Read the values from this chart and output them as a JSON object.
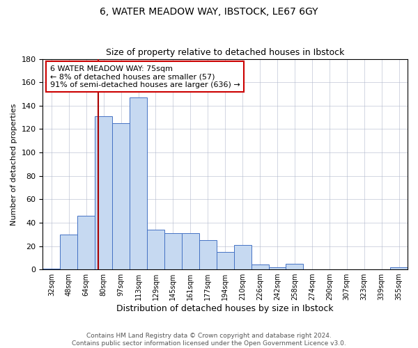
{
  "title": "6, WATER MEADOW WAY, IBSTOCK, LE67 6GY",
  "subtitle": "Size of property relative to detached houses in Ibstock",
  "xlabel": "Distribution of detached houses by size in Ibstock",
  "ylabel": "Number of detached properties",
  "bar_labels": [
    "32sqm",
    "48sqm",
    "64sqm",
    "80sqm",
    "97sqm",
    "113sqm",
    "129sqm",
    "145sqm",
    "161sqm",
    "177sqm",
    "194sqm",
    "210sqm",
    "226sqm",
    "242sqm",
    "258sqm",
    "274sqm",
    "290sqm",
    "307sqm",
    "323sqm",
    "339sqm",
    "355sqm"
  ],
  "bar_values": [
    1,
    30,
    46,
    131,
    125,
    147,
    34,
    31,
    31,
    25,
    15,
    21,
    4,
    2,
    5,
    0,
    0,
    0,
    0,
    0,
    2
  ],
  "bar_color": "#c6d9f1",
  "bar_edge_color": "#4472c4",
  "annotation_text_line1": "6 WATER MEADOW WAY: 75sqm",
  "annotation_text_line2": "← 8% of detached houses are smaller (57)",
  "annotation_text_line3": "91% of semi-detached houses are larger (636) →",
  "annotation_box_color": "#ffffff",
  "annotation_border_color": "#cc0000",
  "vline_color": "#aa0000",
  "footer_line1": "Contains HM Land Registry data © Crown copyright and database right 2024.",
  "footer_line2": "Contains public sector information licensed under the Open Government Licence v3.0.",
  "ylim": [
    0,
    180
  ],
  "title_fontsize": 10,
  "xlabel_fontsize": 9,
  "ylabel_fontsize": 8,
  "tick_fontsize": 7,
  "footer_fontsize": 6.5,
  "annotation_fontsize": 8,
  "vline_x_index": 2.69
}
